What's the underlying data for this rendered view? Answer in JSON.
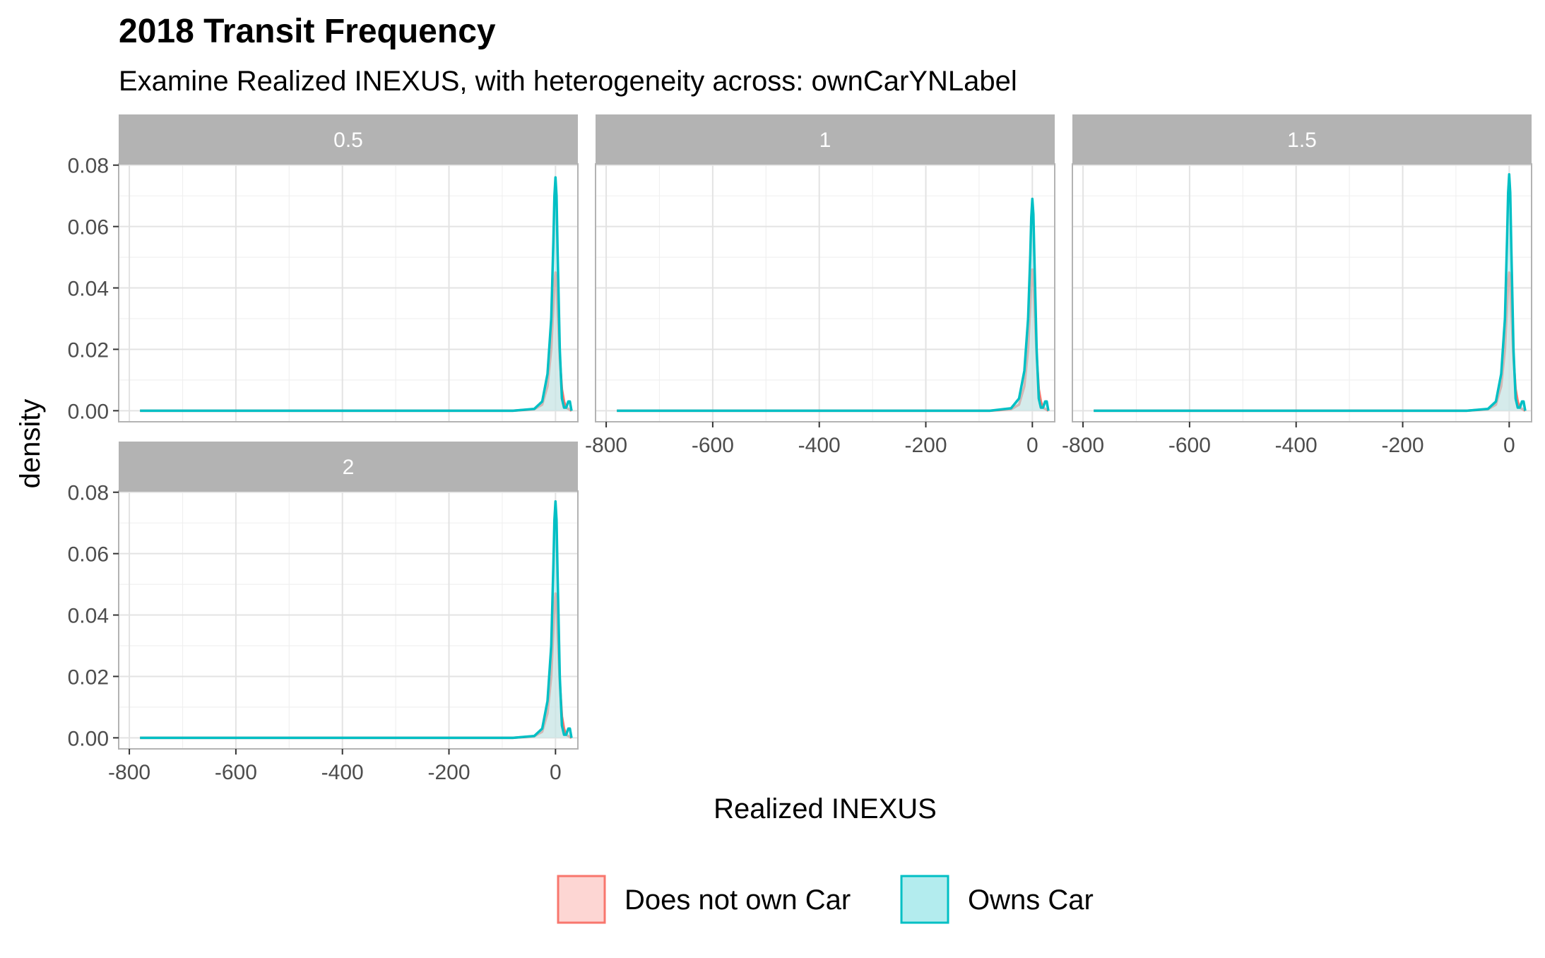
{
  "chart_data": {
    "type": "area",
    "title": "2018 Transit Frequency",
    "subtitle": "Examine Realized INEXUS, with heterogeneity across: ownCarYNLabel",
    "xlabel": "Realized INEXUS",
    "ylabel": "density",
    "xlim": [
      -800,
      40
    ],
    "ylim": [
      0,
      0.08
    ],
    "x_ticks": [
      -800,
      -600,
      -400,
      -200,
      0
    ],
    "y_ticks": [
      0.0,
      0.02,
      0.04,
      0.06,
      0.08
    ],
    "x_tick_labels": [
      "-800",
      "-600",
      "-400",
      "-200",
      "0"
    ],
    "y_tick_labels": [
      "0.00",
      "0.02",
      "0.04",
      "0.06",
      "0.08"
    ],
    "grid": true,
    "legend_position": "bottom",
    "legend": [
      {
        "label": "Does not own Car",
        "color": "#F8766D",
        "fill": "#FDD6D3"
      },
      {
        "label": "Owns Car",
        "color": "#00BFC4",
        "fill": "#B3ECEE"
      }
    ],
    "facets": [
      {
        "label": "0.5",
        "series": [
          {
            "name": "Does not own Car",
            "x": [
              -780,
              -200,
              -80,
              -40,
              -25,
              -15,
              -8,
              -4,
              -2,
              0,
              2,
              4,
              8,
              12,
              16,
              20,
              30
            ],
            "y": [
              0,
              0,
              0,
              0.0005,
              0.002,
              0.008,
              0.02,
              0.034,
              0.042,
              0.045,
              0.042,
              0.033,
              0.017,
              0.007,
              0.003,
              0.001,
              0
            ]
          },
          {
            "name": "Owns Car",
            "x": [
              -780,
              -200,
              -80,
              -40,
              -25,
              -15,
              -8,
              -4,
              -2,
              0,
              2,
              4,
              8,
              12,
              16,
              20,
              24,
              27,
              30
            ],
            "y": [
              0,
              0,
              0,
              0.0006,
              0.003,
              0.012,
              0.03,
              0.055,
              0.07,
              0.076,
              0.07,
              0.052,
              0.02,
              0.004,
              0.001,
              0.001,
              0.003,
              0.003,
              0
            ]
          }
        ]
      },
      {
        "label": "1",
        "series": [
          {
            "name": "Does not own Car",
            "x": [
              -780,
              -200,
              -80,
              -40,
              -25,
              -15,
              -8,
              -4,
              -2,
              0,
              2,
              4,
              8,
              12,
              16,
              20,
              30
            ],
            "y": [
              0,
              0,
              0,
              0.0005,
              0.002,
              0.008,
              0.02,
              0.034,
              0.042,
              0.046,
              0.043,
              0.034,
              0.018,
              0.007,
              0.003,
              0.001,
              0
            ]
          },
          {
            "name": "Owns Car",
            "x": [
              -780,
              -200,
              -80,
              -40,
              -25,
              -15,
              -8,
              -4,
              -2,
              0,
              2,
              4,
              8,
              12,
              16,
              20,
              24,
              27,
              30
            ],
            "y": [
              0,
              0,
              0,
              0.0008,
              0.004,
              0.013,
              0.03,
              0.05,
              0.063,
              0.069,
              0.064,
              0.049,
              0.02,
              0.004,
              0.001,
              0.001,
              0.003,
              0.003,
              0
            ]
          }
        ]
      },
      {
        "label": "1.5",
        "series": [
          {
            "name": "Does not own Car",
            "x": [
              -780,
              -200,
              -80,
              -40,
              -25,
              -15,
              -8,
              -4,
              -2,
              0,
              2,
              4,
              8,
              12,
              16,
              20,
              30
            ],
            "y": [
              0,
              0,
              0,
              0.0005,
              0.002,
              0.008,
              0.02,
              0.034,
              0.042,
              0.045,
              0.042,
              0.033,
              0.017,
              0.007,
              0.003,
              0.001,
              0
            ]
          },
          {
            "name": "Owns Car",
            "x": [
              -780,
              -200,
              -80,
              -40,
              -25,
              -15,
              -8,
              -4,
              -2,
              0,
              2,
              4,
              8,
              12,
              16,
              20,
              24,
              27,
              30
            ],
            "y": [
              0,
              0,
              0,
              0.0006,
              0.003,
              0.012,
              0.03,
              0.056,
              0.071,
              0.077,
              0.071,
              0.053,
              0.02,
              0.004,
              0.001,
              0.001,
              0.003,
              0.003,
              0
            ]
          }
        ]
      },
      {
        "label": "2",
        "series": [
          {
            "name": "Does not own Car",
            "x": [
              -780,
              -200,
              -80,
              -40,
              -25,
              -15,
              -8,
              -4,
              -2,
              0,
              2,
              4,
              8,
              12,
              16,
              20,
              30
            ],
            "y": [
              0,
              0,
              0,
              0.0005,
              0.002,
              0.008,
              0.02,
              0.035,
              0.043,
              0.047,
              0.044,
              0.034,
              0.018,
              0.007,
              0.003,
              0.001,
              0
            ]
          },
          {
            "name": "Owns Car",
            "x": [
              -780,
              -200,
              -80,
              -40,
              -25,
              -15,
              -8,
              -4,
              -2,
              0,
              2,
              4,
              8,
              12,
              16,
              20,
              24,
              27,
              30
            ],
            "y": [
              0,
              0,
              0,
              0.0006,
              0.003,
              0.012,
              0.03,
              0.056,
              0.071,
              0.077,
              0.071,
              0.053,
              0.02,
              0.004,
              0.001,
              0.001,
              0.003,
              0.003,
              0
            ]
          }
        ]
      }
    ]
  }
}
